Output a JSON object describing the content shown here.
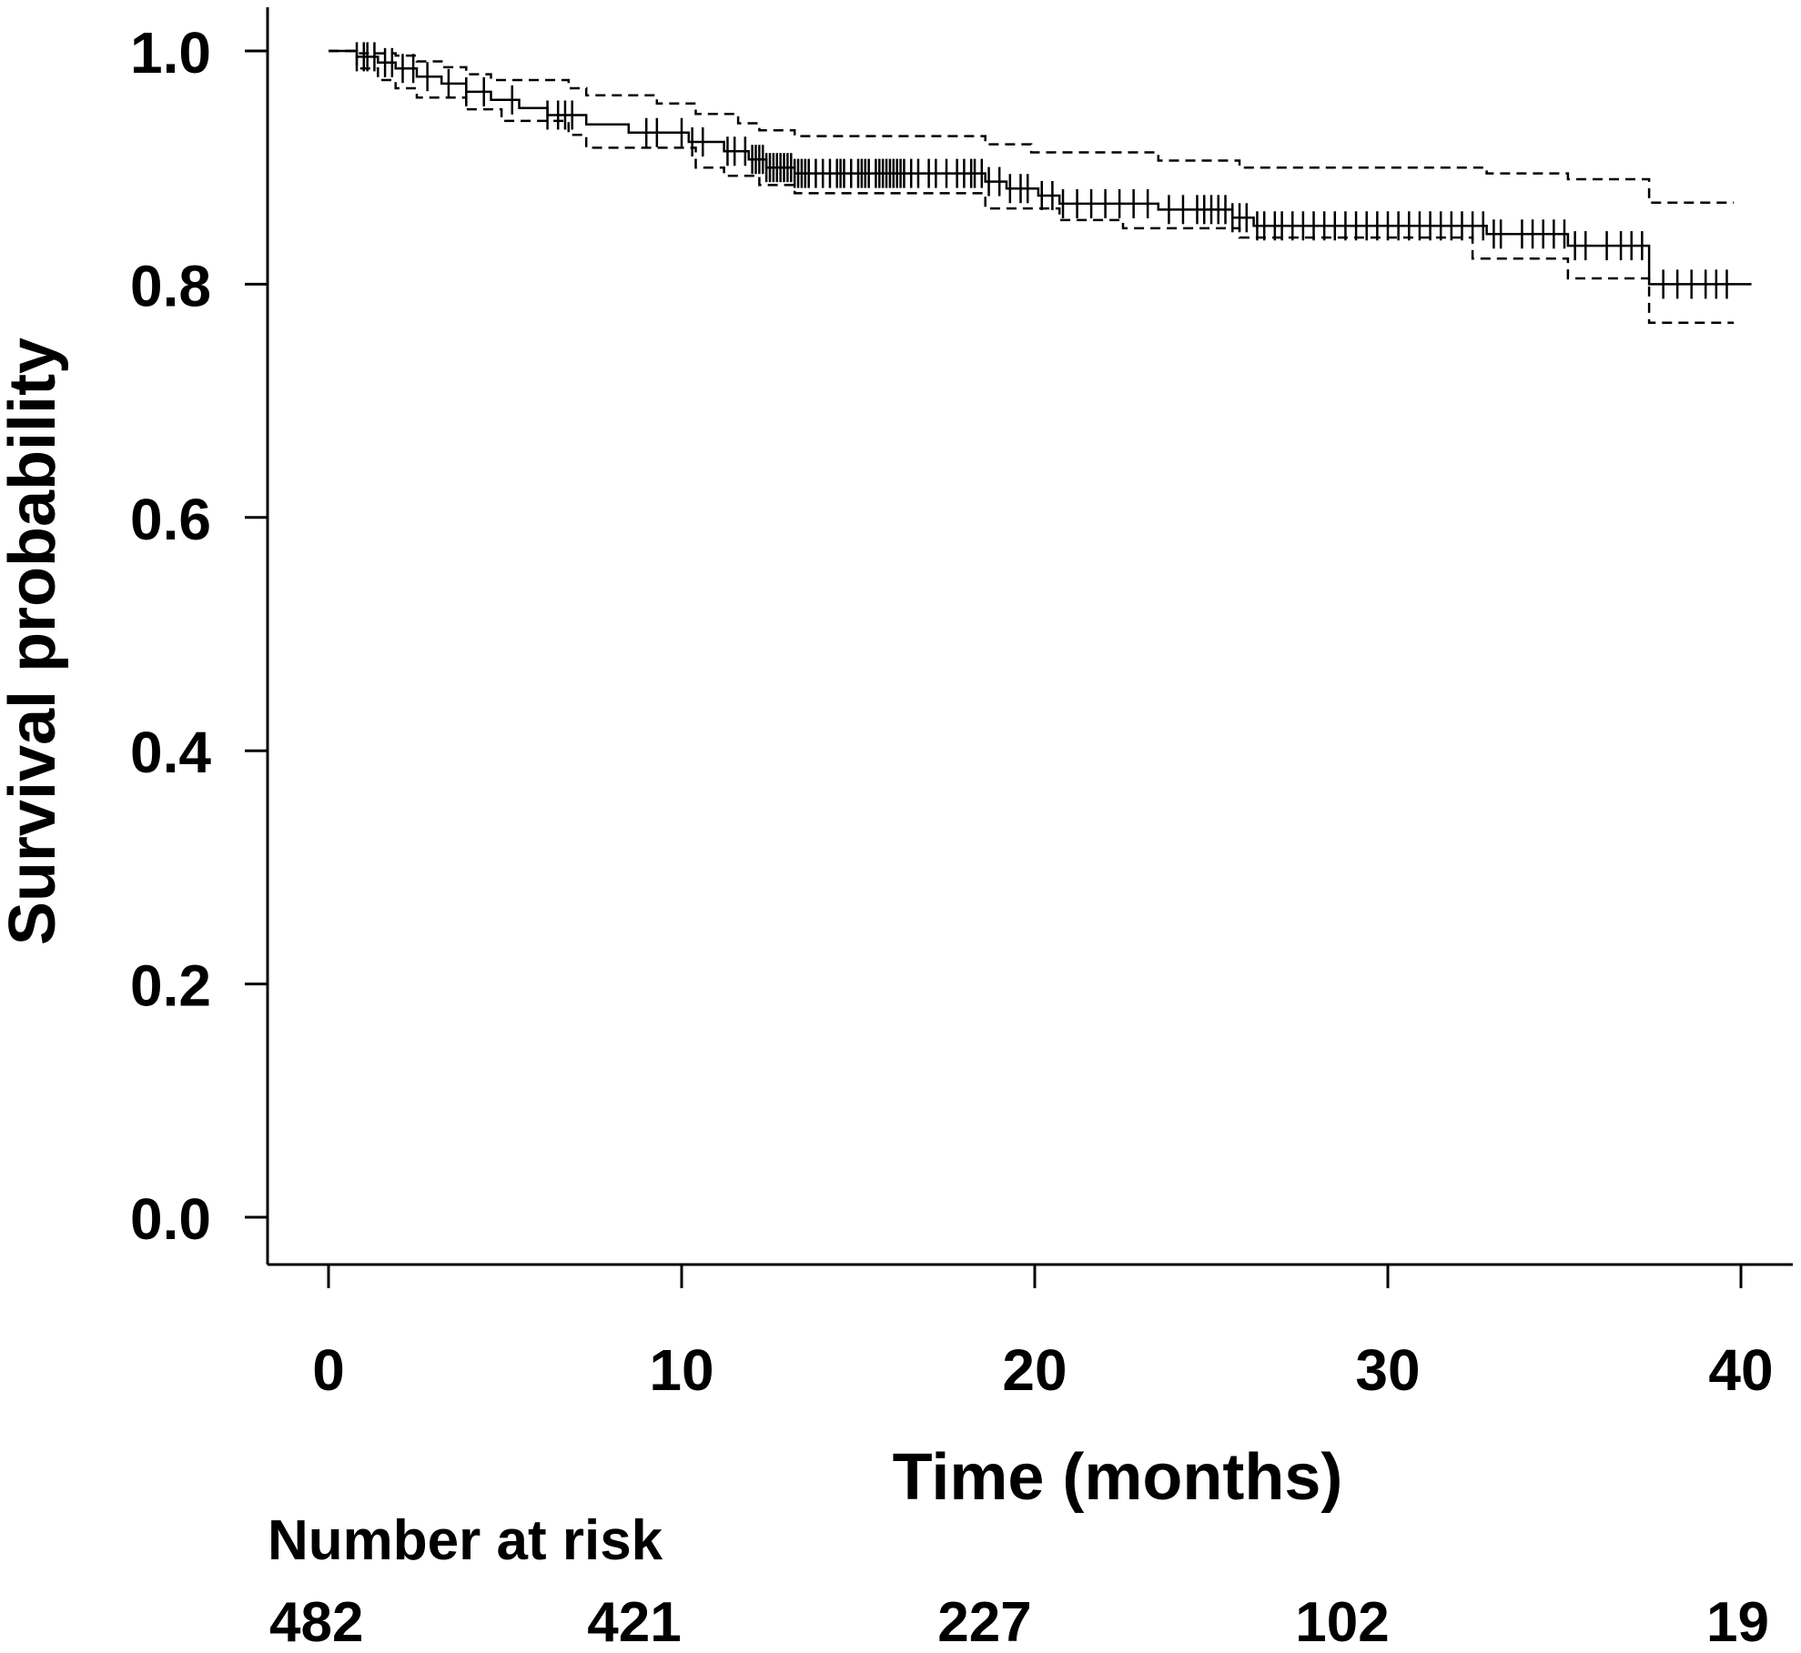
{
  "chart_data": {
    "type": "line",
    "subtype": "kaplan-meier",
    "title": "",
    "xlabel": "Time (months)",
    "ylabel": "Survival probability",
    "xlim": [
      0,
      40
    ],
    "ylim": [
      0,
      1
    ],
    "x_ticks": [
      "0",
      "10",
      "20",
      "30",
      "40"
    ],
    "y_ticks": [
      "0.0",
      "0.2",
      "0.4",
      "0.6",
      "0.8",
      "1.0"
    ],
    "grid": false,
    "legend": "none",
    "series": [
      {
        "style": "solid",
        "points": [
          [
            0,
            1.0
          ],
          [
            0.8,
            1.0
          ],
          [
            0.8,
            0.995
          ],
          [
            1.4,
            0.995
          ],
          [
            1.4,
            0.99
          ],
          [
            1.9,
            0.99
          ],
          [
            1.9,
            0.985
          ],
          [
            2.5,
            0.985
          ],
          [
            2.5,
            0.978
          ],
          [
            3.2,
            0.978
          ],
          [
            3.2,
            0.972
          ],
          [
            3.9,
            0.972
          ],
          [
            3.9,
            0.965
          ],
          [
            4.6,
            0.965
          ],
          [
            4.6,
            0.958
          ],
          [
            5.4,
            0.958
          ],
          [
            5.4,
            0.951
          ],
          [
            6.2,
            0.951
          ],
          [
            6.2,
            0.945
          ],
          [
            7.3,
            0.945
          ],
          [
            7.3,
            0.937
          ],
          [
            8.5,
            0.937
          ],
          [
            8.5,
            0.93
          ],
          [
            10.2,
            0.93
          ],
          [
            10.2,
            0.922
          ],
          [
            11.2,
            0.922
          ],
          [
            11.2,
            0.914
          ],
          [
            11.9,
            0.914
          ],
          [
            11.9,
            0.907
          ],
          [
            12.4,
            0.907
          ],
          [
            12.4,
            0.9
          ],
          [
            13.2,
            0.9
          ],
          [
            13.2,
            0.895
          ],
          [
            18.6,
            0.895
          ],
          [
            18.6,
            0.888
          ],
          [
            19.2,
            0.888
          ],
          [
            19.2,
            0.882
          ],
          [
            20.1,
            0.882
          ],
          [
            20.1,
            0.876
          ],
          [
            20.7,
            0.876
          ],
          [
            20.7,
            0.869
          ],
          [
            23.5,
            0.869
          ],
          [
            23.5,
            0.864
          ],
          [
            25.6,
            0.864
          ],
          [
            25.6,
            0.857
          ],
          [
            26.2,
            0.857
          ],
          [
            26.2,
            0.85
          ],
          [
            32.8,
            0.85
          ],
          [
            32.8,
            0.843
          ],
          [
            35.1,
            0.843
          ],
          [
            35.1,
            0.833
          ],
          [
            37.4,
            0.833
          ],
          [
            37.4,
            0.8
          ],
          [
            40.3,
            0.8
          ]
        ]
      },
      {
        "style": "dashed",
        "points": [
          [
            0,
            1.0
          ],
          [
            0.8,
            1.0
          ],
          [
            0.8,
            0.998
          ],
          [
            1.4,
            0.998
          ],
          [
            1.9,
            0.998
          ],
          [
            1.9,
            0.996
          ],
          [
            2.5,
            0.996
          ],
          [
            2.5,
            0.991
          ],
          [
            3.2,
            0.991
          ],
          [
            3.2,
            0.986
          ],
          [
            3.9,
            0.986
          ],
          [
            3.9,
            0.98
          ],
          [
            4.6,
            0.98
          ],
          [
            4.6,
            0.975
          ],
          [
            6.8,
            0.975
          ],
          [
            6.8,
            0.968
          ],
          [
            7.3,
            0.968
          ],
          [
            7.3,
            0.962
          ],
          [
            9.3,
            0.962
          ],
          [
            9.3,
            0.955
          ],
          [
            10.4,
            0.955
          ],
          [
            10.4,
            0.946
          ],
          [
            11.6,
            0.946
          ],
          [
            11.6,
            0.938
          ],
          [
            12.2,
            0.938
          ],
          [
            12.2,
            0.932
          ],
          [
            13.2,
            0.932
          ],
          [
            13.2,
            0.927
          ],
          [
            18.6,
            0.927
          ],
          [
            18.6,
            0.92
          ],
          [
            19.9,
            0.92
          ],
          [
            19.9,
            0.913
          ],
          [
            23.5,
            0.913
          ],
          [
            23.5,
            0.906
          ],
          [
            25.8,
            0.906
          ],
          [
            25.8,
            0.9
          ],
          [
            32.8,
            0.9
          ],
          [
            32.8,
            0.895
          ],
          [
            35.1,
            0.895
          ],
          [
            35.1,
            0.89
          ],
          [
            37.4,
            0.89
          ],
          [
            37.4,
            0.87
          ],
          [
            39.8,
            0.87
          ]
        ]
      },
      {
        "style": "dashed",
        "points": [
          [
            0,
            1.0
          ],
          [
            0.8,
            1.0
          ],
          [
            0.8,
            0.985
          ],
          [
            1.4,
            0.985
          ],
          [
            1.4,
            0.975
          ],
          [
            1.9,
            0.975
          ],
          [
            1.9,
            0.968
          ],
          [
            2.5,
            0.968
          ],
          [
            2.5,
            0.96
          ],
          [
            3.9,
            0.96
          ],
          [
            3.9,
            0.95
          ],
          [
            4.9,
            0.95
          ],
          [
            4.9,
            0.94
          ],
          [
            6.8,
            0.94
          ],
          [
            6.8,
            0.928
          ],
          [
            7.3,
            0.928
          ],
          [
            7.3,
            0.917
          ],
          [
            10.4,
            0.917
          ],
          [
            10.4,
            0.9
          ],
          [
            11.2,
            0.9
          ],
          [
            11.2,
            0.893
          ],
          [
            12.2,
            0.893
          ],
          [
            12.2,
            0.885
          ],
          [
            13.2,
            0.885
          ],
          [
            13.2,
            0.878
          ],
          [
            18.6,
            0.878
          ],
          [
            18.6,
            0.865
          ],
          [
            20.7,
            0.865
          ],
          [
            20.7,
            0.855
          ],
          [
            22.5,
            0.855
          ],
          [
            22.5,
            0.848
          ],
          [
            25.8,
            0.848
          ],
          [
            25.8,
            0.84
          ],
          [
            32.4,
            0.84
          ],
          [
            32.4,
            0.822
          ],
          [
            35.1,
            0.822
          ],
          [
            35.1,
            0.805
          ],
          [
            37.4,
            0.805
          ],
          [
            37.4,
            0.767
          ],
          [
            39.8,
            0.767
          ]
        ]
      }
    ],
    "censor_times": [
      0.8,
      1.0,
      1.1,
      1.3,
      1.6,
      1.8,
      2.1,
      2.4,
      2.8,
      3.4,
      3.9,
      4.4,
      5.2,
      6.2,
      6.5,
      6.7,
      6.9,
      9.0,
      9.3,
      10.0,
      10.3,
      10.6,
      11.3,
      11.5,
      11.8,
      12.0,
      12.1,
      12.2,
      12.3,
      12.4,
      12.5,
      12.6,
      12.7,
      12.8,
      12.9,
      13.0,
      13.1,
      13.2,
      13.3,
      13.4,
      13.5,
      13.6,
      13.8,
      14.0,
      14.2,
      14.4,
      14.5,
      14.6,
      14.8,
      15.0,
      15.1,
      15.2,
      15.3,
      15.5,
      15.6,
      15.7,
      15.8,
      15.9,
      16.0,
      16.1,
      16.2,
      16.3,
      16.5,
      16.7,
      17.0,
      17.2,
      17.5,
      17.8,
      18.0,
      18.2,
      18.3,
      18.5,
      18.7,
      19.0,
      19.3,
      19.6,
      19.8,
      20.2,
      20.5,
      20.8,
      21.2,
      21.6,
      22.0,
      22.4,
      22.8,
      23.2,
      23.8,
      24.2,
      24.6,
      24.8,
      25.0,
      25.2,
      25.4,
      25.6,
      25.8,
      26.0,
      26.3,
      26.5,
      26.8,
      27.0,
      27.3,
      27.6,
      27.9,
      28.2,
      28.5,
      28.8,
      29.1,
      29.4,
      29.7,
      30.0,
      30.3,
      30.6,
      30.9,
      31.2,
      31.5,
      31.8,
      32.1,
      32.4,
      32.7,
      33.0,
      33.2,
      33.8,
      34.1,
      34.4,
      34.7,
      35.0,
      35.3,
      35.6,
      36.2,
      36.6,
      36.9,
      37.2,
      37.8,
      38.2,
      38.6,
      39.0,
      39.3,
      39.6
    ]
  },
  "risk_table": {
    "title": "Number at risk",
    "values": [
      "482",
      "421",
      "227",
      "102",
      "19"
    ]
  }
}
